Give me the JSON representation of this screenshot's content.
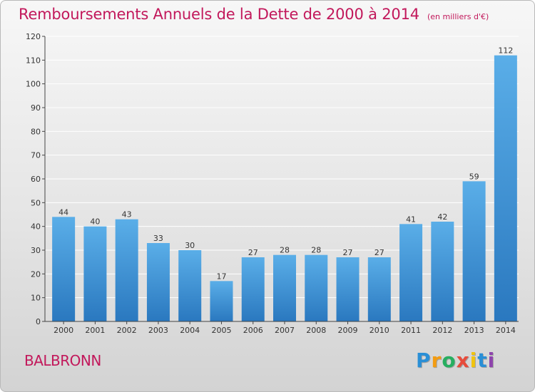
{
  "title": "Remboursements Annuels de la Dette de 2000 à 2014",
  "subtitle": "(en milliers d'€)",
  "place": "BALBRONN",
  "logo": {
    "text": "Proxiti",
    "letters": [
      "P",
      "r",
      "o",
      "x",
      "i",
      "t",
      "i"
    ],
    "colors": [
      "#2a8fd6",
      "#f39c12",
      "#27ae60",
      "#e74c3c",
      "#f1c40f",
      "#2a8fd6",
      "#8e44ad"
    ]
  },
  "colors": {
    "title": "#c2185b",
    "bar_top": "#5aaee8",
    "bar_bottom": "#2a78bf",
    "axis": "#444444",
    "grid": "#ffffff"
  },
  "chart_data": {
    "type": "bar",
    "title": "Remboursements Annuels de la Dette de 2000 à 2014",
    "subtitle": "(en milliers d'€)",
    "xlabel": "",
    "ylabel": "",
    "categories": [
      "2000",
      "2001",
      "2002",
      "2003",
      "2004",
      "2005",
      "2006",
      "2007",
      "2008",
      "2009",
      "2010",
      "2011",
      "2012",
      "2013",
      "2014"
    ],
    "values": [
      44,
      40,
      43,
      33,
      30,
      17,
      27,
      28,
      28,
      27,
      27,
      41,
      42,
      59,
      112
    ],
    "data_labels": [
      "44",
      "40",
      "43",
      "33",
      "30",
      "17",
      "27",
      "28",
      "28",
      "27",
      "27",
      "41",
      "42",
      "59",
      "112"
    ],
    "ylim": [
      0,
      120
    ],
    "yticks": [
      0,
      10,
      20,
      30,
      40,
      50,
      60,
      70,
      80,
      90,
      100,
      110,
      120
    ],
    "ytick_labels": [
      "0",
      "10",
      "20",
      "30",
      "40",
      "50",
      "60",
      "70",
      "80",
      "90",
      "100",
      "110",
      "120"
    ],
    "grid": true,
    "legend": "none"
  }
}
